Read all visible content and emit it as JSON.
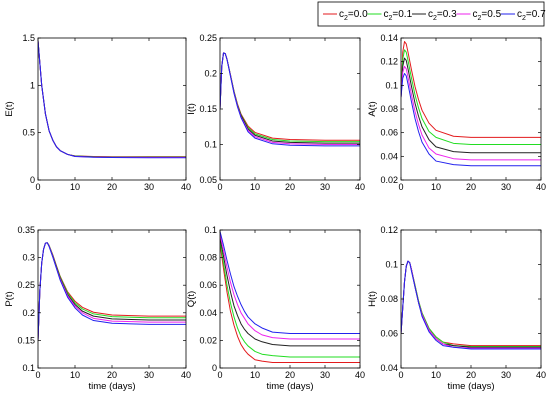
{
  "legend": {
    "items": [
      {
        "main": "c",
        "sub": "2",
        "value": "=0.0",
        "color": "#e31a1c"
      },
      {
        "main": "c",
        "sub": "2",
        "value": "=0.1",
        "color": "#22dd22"
      },
      {
        "main": "c",
        "sub": "2",
        "value": "=0.3",
        "color": "#222222"
      },
      {
        "main": "c",
        "sub": "2",
        "value": "=0.5",
        "color": "#ee22ee"
      },
      {
        "main": "c",
        "sub": "2",
        "value": "=0.7",
        "color": "#2222ee"
      }
    ]
  },
  "chart_data": [
    {
      "type": "line",
      "ylabel": "E(t)",
      "xlabel": "",
      "xlim": [
        0,
        40
      ],
      "ylim": [
        0,
        1.5
      ],
      "xticks": [
        "0",
        "10",
        "20",
        "30",
        "40"
      ],
      "yticks": [
        "0",
        "0.5",
        "1",
        "1.5"
      ],
      "grid": false,
      "x": [
        0,
        1,
        2,
        3,
        4,
        5,
        6,
        8,
        10,
        15,
        20,
        30,
        40
      ],
      "series": [
        {
          "color": "#e31a1c",
          "values": [
            1.47,
            1.0,
            0.7,
            0.52,
            0.42,
            0.35,
            0.31,
            0.27,
            0.255,
            0.248,
            0.245,
            0.245,
            0.245
          ]
        },
        {
          "color": "#22dd22",
          "values": [
            1.47,
            1.0,
            0.7,
            0.52,
            0.42,
            0.35,
            0.31,
            0.27,
            0.253,
            0.246,
            0.243,
            0.242,
            0.242
          ]
        },
        {
          "color": "#222222",
          "values": [
            1.47,
            1.0,
            0.7,
            0.52,
            0.42,
            0.35,
            0.31,
            0.27,
            0.252,
            0.244,
            0.241,
            0.24,
            0.24
          ]
        },
        {
          "color": "#ee22ee",
          "values": [
            1.47,
            1.0,
            0.7,
            0.52,
            0.42,
            0.35,
            0.31,
            0.27,
            0.25,
            0.242,
            0.239,
            0.238,
            0.238
          ]
        },
        {
          "color": "#2222ee",
          "values": [
            1.47,
            1.0,
            0.7,
            0.52,
            0.42,
            0.35,
            0.31,
            0.27,
            0.248,
            0.24,
            0.237,
            0.235,
            0.235
          ]
        }
      ]
    },
    {
      "type": "line",
      "ylabel": "I(t)",
      "xlabel": "",
      "xlim": [
        0,
        40
      ],
      "ylim": [
        0.05,
        0.25
      ],
      "xticks": [
        "0",
        "10",
        "20",
        "30",
        "40"
      ],
      "yticks": [
        "0.05",
        "0.1",
        "0.15",
        "0.2",
        "0.25"
      ],
      "grid": false,
      "x": [
        0,
        0.5,
        1,
        1.5,
        2,
        3,
        4,
        5,
        6,
        8,
        10,
        15,
        20,
        30,
        40
      ],
      "series": [
        {
          "color": "#e31a1c",
          "values": [
            0.15,
            0.21,
            0.229,
            0.228,
            0.22,
            0.198,
            0.175,
            0.157,
            0.143,
            0.126,
            0.117,
            0.109,
            0.107,
            0.106,
            0.106
          ]
        },
        {
          "color": "#22dd22",
          "values": [
            0.15,
            0.21,
            0.229,
            0.228,
            0.22,
            0.198,
            0.175,
            0.156,
            0.142,
            0.124,
            0.115,
            0.107,
            0.105,
            0.104,
            0.104
          ]
        },
        {
          "color": "#222222",
          "values": [
            0.15,
            0.21,
            0.229,
            0.228,
            0.22,
            0.197,
            0.174,
            0.155,
            0.141,
            0.122,
            0.113,
            0.105,
            0.103,
            0.102,
            0.102
          ]
        },
        {
          "color": "#ee22ee",
          "values": [
            0.15,
            0.21,
            0.229,
            0.228,
            0.22,
            0.197,
            0.173,
            0.154,
            0.139,
            0.12,
            0.111,
            0.103,
            0.101,
            0.1,
            0.1
          ]
        },
        {
          "color": "#2222ee",
          "values": [
            0.15,
            0.21,
            0.229,
            0.228,
            0.22,
            0.196,
            0.172,
            0.153,
            0.138,
            0.118,
            0.109,
            0.101,
            0.099,
            0.098,
            0.098
          ]
        }
      ]
    },
    {
      "type": "line",
      "ylabel": "A(t)",
      "xlabel": "",
      "xlim": [
        0,
        40
      ],
      "ylim": [
        0.02,
        0.14
      ],
      "xticks": [
        "0",
        "10",
        "20",
        "30",
        "40"
      ],
      "yticks": [
        "0.02",
        "0.04",
        "0.06",
        "0.08",
        "0.1",
        "0.12",
        "0.14"
      ],
      "grid": false,
      "x": [
        0,
        0.5,
        1,
        1.5,
        2,
        3,
        4,
        5,
        6,
        8,
        10,
        15,
        20,
        30,
        40
      ],
      "series": [
        {
          "color": "#e31a1c",
          "values": [
            0.09,
            0.128,
            0.137,
            0.135,
            0.128,
            0.113,
            0.099,
            0.088,
            0.079,
            0.068,
            0.062,
            0.057,
            0.056,
            0.056,
            0.056
          ]
        },
        {
          "color": "#22dd22",
          "values": [
            0.09,
            0.122,
            0.13,
            0.128,
            0.121,
            0.106,
            0.092,
            0.081,
            0.072,
            0.061,
            0.056,
            0.051,
            0.05,
            0.05,
            0.05
          ]
        },
        {
          "color": "#222222",
          "values": [
            0.09,
            0.116,
            0.123,
            0.121,
            0.114,
            0.099,
            0.085,
            0.074,
            0.065,
            0.054,
            0.048,
            0.044,
            0.043,
            0.043,
            0.043
          ]
        },
        {
          "color": "#ee22ee",
          "values": [
            0.09,
            0.111,
            0.116,
            0.114,
            0.107,
            0.092,
            0.078,
            0.067,
            0.058,
            0.047,
            0.042,
            0.038,
            0.037,
            0.037,
            0.037
          ]
        },
        {
          "color": "#2222ee",
          "values": [
            0.09,
            0.106,
            0.11,
            0.108,
            0.101,
            0.086,
            0.072,
            0.061,
            0.052,
            0.042,
            0.036,
            0.033,
            0.032,
            0.032,
            0.032
          ]
        }
      ]
    },
    {
      "type": "line",
      "ylabel": "P(t)",
      "xlabel": "time (days)",
      "xlim": [
        0,
        40
      ],
      "ylim": [
        0.1,
        0.35
      ],
      "xticks": [
        "0",
        "10",
        "20",
        "30",
        "40"
      ],
      "yticks": [
        "0.1",
        "0.15",
        "0.2",
        "0.25",
        "0.3",
        "0.35"
      ],
      "grid": false,
      "x": [
        0,
        0.5,
        1,
        1.5,
        2,
        2.5,
        3,
        4,
        5,
        6,
        8,
        10,
        12,
        15,
        20,
        30,
        40
      ],
      "series": [
        {
          "color": "#e31a1c",
          "values": [
            0.15,
            0.24,
            0.29,
            0.315,
            0.326,
            0.327,
            0.322,
            0.305,
            0.285,
            0.266,
            0.238,
            0.221,
            0.21,
            0.201,
            0.196,
            0.194,
            0.194
          ]
        },
        {
          "color": "#22dd22",
          "values": [
            0.15,
            0.24,
            0.29,
            0.315,
            0.326,
            0.327,
            0.322,
            0.304,
            0.284,
            0.265,
            0.236,
            0.218,
            0.207,
            0.198,
            0.193,
            0.191,
            0.191
          ]
        },
        {
          "color": "#222222",
          "values": [
            0.15,
            0.24,
            0.29,
            0.315,
            0.326,
            0.327,
            0.321,
            0.303,
            0.283,
            0.263,
            0.233,
            0.215,
            0.203,
            0.194,
            0.189,
            0.187,
            0.187
          ]
        },
        {
          "color": "#ee22ee",
          "values": [
            0.15,
            0.24,
            0.29,
            0.315,
            0.326,
            0.327,
            0.321,
            0.302,
            0.281,
            0.261,
            0.231,
            0.212,
            0.2,
            0.19,
            0.185,
            0.183,
            0.183
          ]
        },
        {
          "color": "#2222ee",
          "values": [
            0.15,
            0.24,
            0.29,
            0.315,
            0.326,
            0.327,
            0.32,
            0.301,
            0.28,
            0.259,
            0.228,
            0.209,
            0.196,
            0.186,
            0.181,
            0.179,
            0.179
          ]
        }
      ]
    },
    {
      "type": "line",
      "ylabel": "Q(t)",
      "xlabel": "time (days)",
      "xlim": [
        0,
        40
      ],
      "ylim": [
        0,
        0.1
      ],
      "xticks": [
        "0",
        "10",
        "20",
        "30",
        "40"
      ],
      "yticks": [
        "0",
        "0.02",
        "0.04",
        "0.06",
        "0.08",
        "0.1"
      ],
      "grid": false,
      "x": [
        0,
        1,
        2,
        3,
        4,
        5,
        6,
        7,
        8,
        10,
        12,
        15,
        20,
        30,
        40
      ],
      "series": [
        {
          "color": "#e31a1c",
          "values": [
            0.09,
            0.072,
            0.055,
            0.041,
            0.031,
            0.023,
            0.017,
            0.013,
            0.01,
            0.006,
            0.005,
            0.004,
            0.004,
            0.004,
            0.004
          ]
        },
        {
          "color": "#22dd22",
          "values": [
            0.092,
            0.076,
            0.06,
            0.047,
            0.037,
            0.029,
            0.023,
            0.019,
            0.016,
            0.012,
            0.01,
            0.009,
            0.008,
            0.008,
            0.008
          ]
        },
        {
          "color": "#222222",
          "values": [
            0.095,
            0.081,
            0.067,
            0.055,
            0.045,
            0.038,
            0.032,
            0.028,
            0.025,
            0.021,
            0.019,
            0.017,
            0.016,
            0.016,
            0.016
          ]
        },
        {
          "color": "#ee22ee",
          "values": [
            0.097,
            0.085,
            0.073,
            0.062,
            0.053,
            0.046,
            0.04,
            0.036,
            0.032,
            0.027,
            0.024,
            0.022,
            0.021,
            0.021,
            0.021
          ]
        },
        {
          "color": "#2222ee",
          "values": [
            0.099,
            0.089,
            0.078,
            0.068,
            0.059,
            0.052,
            0.046,
            0.041,
            0.037,
            0.032,
            0.029,
            0.026,
            0.025,
            0.025,
            0.025
          ]
        }
      ]
    },
    {
      "type": "line",
      "ylabel": "H(t)",
      "xlabel": "time (days)",
      "xlim": [
        0,
        40
      ],
      "ylim": [
        0.04,
        0.12
      ],
      "xticks": [
        "0",
        "10",
        "20",
        "30",
        "40"
      ],
      "yticks": [
        "0.04",
        "0.06",
        "0.08",
        "0.1",
        "0.12"
      ],
      "grid": false,
      "x": [
        0,
        0.5,
        1,
        1.5,
        2,
        2.5,
        3,
        4,
        5,
        6,
        8,
        10,
        12,
        15,
        20,
        30,
        40
      ],
      "series": [
        {
          "color": "#e31a1c",
          "values": [
            0.06,
            0.075,
            0.09,
            0.099,
            0.102,
            0.101,
            0.097,
            0.088,
            0.079,
            0.072,
            0.063,
            0.058,
            0.055,
            0.054,
            0.053,
            0.053,
            0.053
          ]
        },
        {
          "color": "#22dd22",
          "values": [
            0.06,
            0.075,
            0.09,
            0.099,
            0.102,
            0.101,
            0.097,
            0.088,
            0.079,
            0.072,
            0.063,
            0.058,
            0.055,
            0.053,
            0.0525,
            0.0525,
            0.0525
          ]
        },
        {
          "color": "#222222",
          "values": [
            0.06,
            0.075,
            0.09,
            0.099,
            0.102,
            0.101,
            0.097,
            0.087,
            0.078,
            0.071,
            0.062,
            0.057,
            0.054,
            0.053,
            0.052,
            0.052,
            0.052
          ]
        },
        {
          "color": "#ee22ee",
          "values": [
            0.06,
            0.075,
            0.09,
            0.099,
            0.102,
            0.101,
            0.097,
            0.087,
            0.078,
            0.071,
            0.062,
            0.057,
            0.054,
            0.052,
            0.0515,
            0.0515,
            0.0515
          ]
        },
        {
          "color": "#2222ee",
          "values": [
            0.06,
            0.075,
            0.09,
            0.099,
            0.102,
            0.101,
            0.096,
            0.087,
            0.078,
            0.07,
            0.061,
            0.056,
            0.053,
            0.052,
            0.051,
            0.051,
            0.051
          ]
        }
      ]
    }
  ]
}
